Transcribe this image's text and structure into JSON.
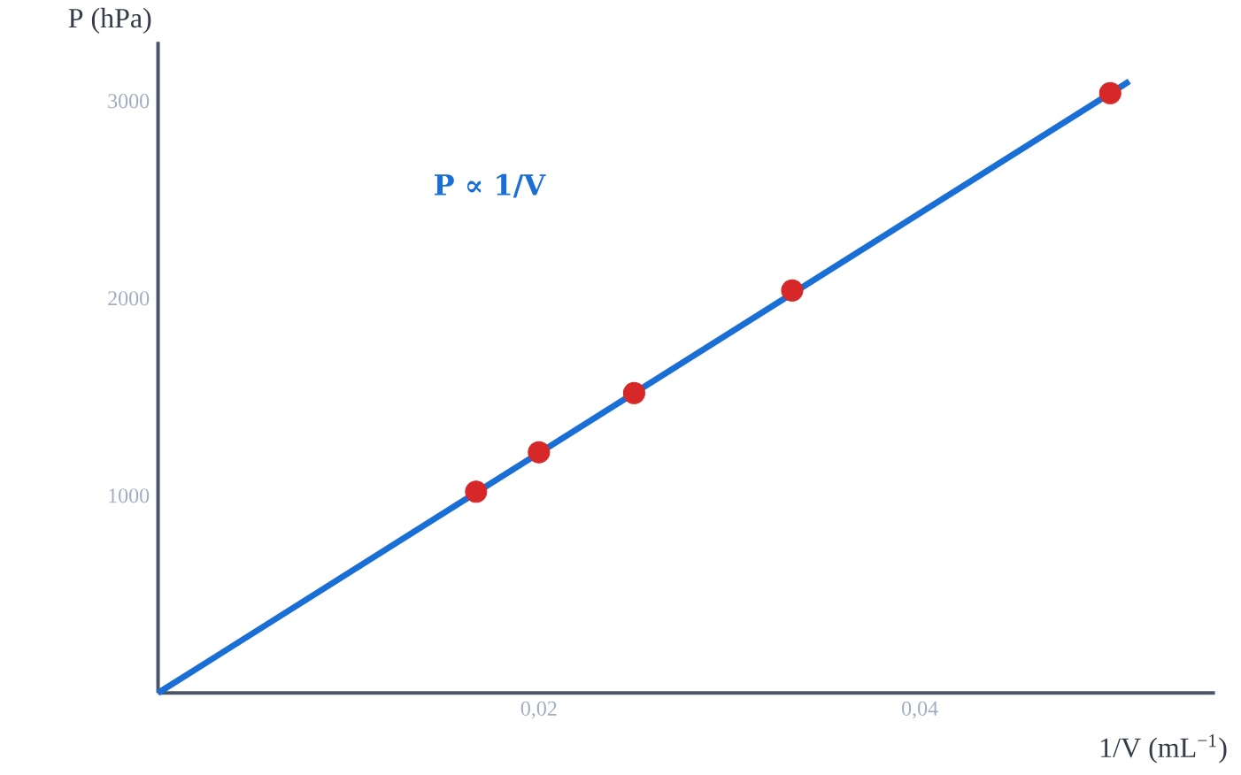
{
  "chart_data": {
    "type": "scatter",
    "xlabel": "1/V (mL$^{−1}$)",
    "ylabel": "P (hPa)",
    "annotations": [
      "P ∝ 1/V"
    ],
    "series": [
      {
        "type": "line",
        "color": "#1a6fd6",
        "x": [
          0,
          0.051
        ],
        "values": [
          0,
          3100
        ],
        "marker": "none"
      },
      {
        "color": "#d62828",
        "x": [
          0.0167,
          0.02,
          0.025,
          0.0333,
          0.05
        ],
        "values": [
          1020,
          1220,
          1520,
          2040,
          3040
        ],
        "marker": "circle"
      }
    ],
    "xlim": [
      0,
      0.0555
    ],
    "ylim": [
      0,
      3300
    ],
    "xticks": [
      {
        "value": 0.02,
        "label": "0,02"
      },
      {
        "value": 0.04,
        "label": "0,04"
      }
    ],
    "yticks": [
      1000,
      2000,
      3000
    ]
  }
}
